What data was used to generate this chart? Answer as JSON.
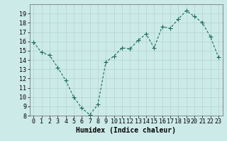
{
  "x": [
    0,
    1,
    2,
    3,
    4,
    5,
    6,
    7,
    8,
    9,
    10,
    11,
    12,
    13,
    14,
    15,
    16,
    17,
    18,
    19,
    20,
    21,
    22,
    23
  ],
  "y": [
    15.9,
    14.8,
    14.5,
    13.2,
    11.8,
    10.0,
    8.8,
    8.1,
    9.2,
    13.8,
    14.4,
    15.3,
    15.2,
    16.1,
    16.8,
    15.3,
    17.6,
    17.4,
    18.4,
    19.3,
    18.7,
    18.0,
    16.5,
    14.3
  ],
  "line_color": "#1a6b5a",
  "marker": "+",
  "marker_size": 4,
  "bg_color": "#cceae8",
  "grid_color": "#b0d5d2",
  "xlabel": "Humidex (Indice chaleur)",
  "xlabel_fontsize": 7,
  "tick_fontsize": 6,
  "ylim": [
    8,
    20
  ],
  "xlim": [
    -0.5,
    23.5
  ],
  "yticks": [
    8,
    9,
    10,
    11,
    12,
    13,
    14,
    15,
    16,
    17,
    18,
    19
  ],
  "xticks": [
    0,
    1,
    2,
    3,
    4,
    5,
    6,
    7,
    8,
    9,
    10,
    11,
    12,
    13,
    14,
    15,
    16,
    17,
    18,
    19,
    20,
    21,
    22,
    23
  ]
}
